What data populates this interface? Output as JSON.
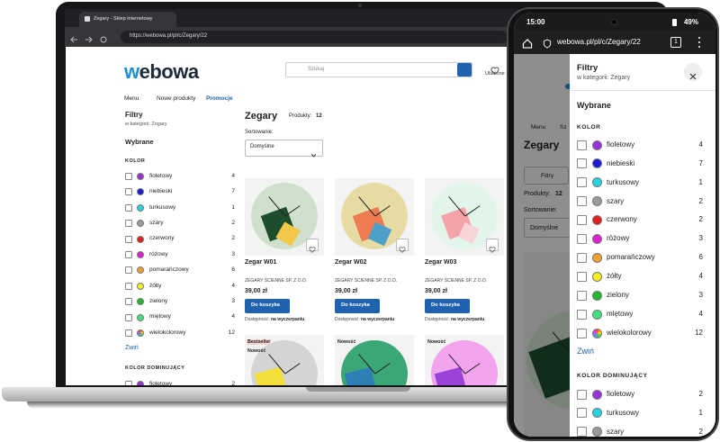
{
  "browser": {
    "tab_title": "Zegary - Sklep internetowy",
    "url": "https://webowa.pl/pl/c/Zegary/22"
  },
  "site": {
    "logo": "webowa",
    "search_placeholder": "Szukaj",
    "favorites": "Ulubione",
    "nav": [
      "Menu",
      "Nowe produkty",
      "Promocje"
    ]
  },
  "filters": {
    "title": "Filtry",
    "subtitle": "w kategorii: Zegary",
    "selected": "Wybrane",
    "color_heading": "KOLOR",
    "colors": [
      {
        "name": "fioletowy",
        "count": 4,
        "color": "#9b30d9"
      },
      {
        "name": "niebieski",
        "count": 7,
        "color": "#1a1ad8"
      },
      {
        "name": "turkusowy",
        "count": 1,
        "color": "#22d3e0"
      },
      {
        "name": "szary",
        "count": 2,
        "color": "#9a9a9a"
      },
      {
        "name": "czerwony",
        "count": 2,
        "color": "#e02020"
      },
      {
        "name": "różowy",
        "count": 3,
        "color": "#e020d0"
      },
      {
        "name": "pomarańczowy",
        "count": 6,
        "color": "#f4a030"
      },
      {
        "name": "żółty",
        "count": 4,
        "color": "#f4f020"
      },
      {
        "name": "zielony",
        "count": 3,
        "color": "#22b830"
      },
      {
        "name": "miętowy",
        "count": 4,
        "color": "#40e080"
      },
      {
        "name": "wielokolorowy",
        "count": 12,
        "color": [
          "#f44",
          "#fd0",
          "#4c4",
          "#49f",
          "#c4f"
        ]
      }
    ],
    "collapse": "Zwiń",
    "dominant_heading": "KOLOR DOMINUJĄCY",
    "dominant_colors": [
      {
        "name": "fioletowy",
        "count": 2,
        "color": "#9b30d9"
      },
      {
        "name": "turkusowy",
        "count": 1,
        "color": "#22d3e0"
      },
      {
        "name": "szary",
        "count": 2,
        "color": "#9a9a9a"
      }
    ]
  },
  "listing": {
    "title": "Zegary",
    "products_label": "Produkty:",
    "products_count": 12,
    "sort_label": "Sortowanie:",
    "sort_value": "Domyślne",
    "products": [
      {
        "name": "Zegar W01",
        "manufacturer": "ZEGARY ŚCIENNE SP. Z O.O.",
        "price": "39,00 zł",
        "button": "Do koszyka",
        "availability_label": "Dostępność:",
        "availability": "na wyczerpaniu"
      },
      {
        "name": "Zegar W02",
        "manufacturer": "ZEGARY ŚCIENNE SP. Z O.O.",
        "price": "39,00 zł",
        "button": "Do koszyka",
        "availability_label": "Dostępność:",
        "availability": "na wyczerpaniu"
      },
      {
        "name": "Zegar W03",
        "manufacturer": "ZEGARY ŚCIENNE SP. Z O.O.",
        "price": "39,00 zł",
        "button": "Do koszyka",
        "availability_label": "Dostępność:",
        "availability": "na wyczerpaniu"
      }
    ],
    "badges": [
      [
        "Bestseller",
        "Nowość"
      ],
      [
        "Nowość"
      ],
      [
        "Nowość"
      ]
    ]
  },
  "phone": {
    "time": "15:00",
    "battery": "49%",
    "url": "webowa.pl/pl/c/Zegary/22",
    "tabs": "1",
    "search_cut": "Sz"
  }
}
